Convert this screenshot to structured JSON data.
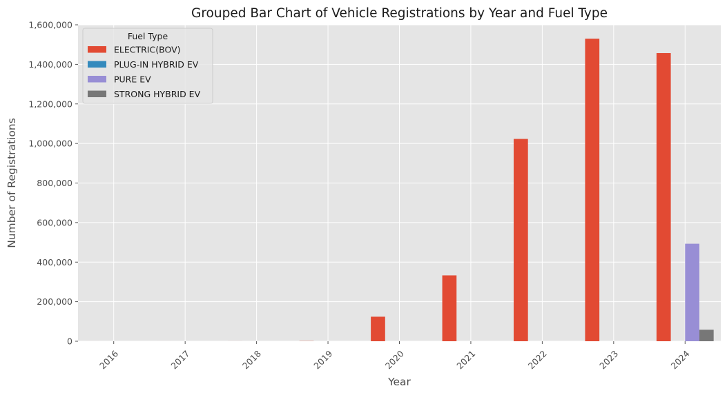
{
  "chart_data": {
    "type": "bar",
    "title": "Grouped Bar Chart of Vehicle Registrations by Year and Fuel Type",
    "xlabel": "Year",
    "ylabel": "Number of Registrations",
    "categories": [
      "2016",
      "2017",
      "2018",
      "2019",
      "2020",
      "2021",
      "2022",
      "2023",
      "2024"
    ],
    "ylim": [
      0,
      1600000
    ],
    "yticks": [
      0,
      200000,
      400000,
      600000,
      800000,
      1000000,
      1200000,
      1400000,
      1600000
    ],
    "ytick_labels": [
      "0",
      "200,000",
      "400,000",
      "600,000",
      "800,000",
      "1,000,000",
      "1,200,000",
      "1,400,000",
      "1,600,000"
    ],
    "grid": true,
    "legend": {
      "title": "Fuel Type",
      "position": "top-left"
    },
    "series": [
      {
        "name": "ELECTRIC(BOV)",
        "color": "#E24A33",
        "values": [
          20,
          40,
          150,
          900,
          124000,
          333000,
          1023000,
          1530000,
          1457000
        ]
      },
      {
        "name": "PLUG-IN HYBRID EV",
        "color": "#348ABD",
        "values": [
          0,
          0,
          0,
          0,
          0,
          0,
          0,
          0,
          30
        ]
      },
      {
        "name": "PURE EV",
        "color": "#988ED5",
        "values": [
          0,
          0,
          0,
          0,
          0,
          0,
          0,
          0,
          493000
        ]
      },
      {
        "name": "STRONG HYBRID EV",
        "color": "#777777",
        "values": [
          0,
          0,
          0,
          0,
          0,
          0,
          0,
          0,
          58000
        ]
      }
    ],
    "colors": {
      "plot_background": "#E5E5E5",
      "grid": "#FFFFFF"
    }
  }
}
